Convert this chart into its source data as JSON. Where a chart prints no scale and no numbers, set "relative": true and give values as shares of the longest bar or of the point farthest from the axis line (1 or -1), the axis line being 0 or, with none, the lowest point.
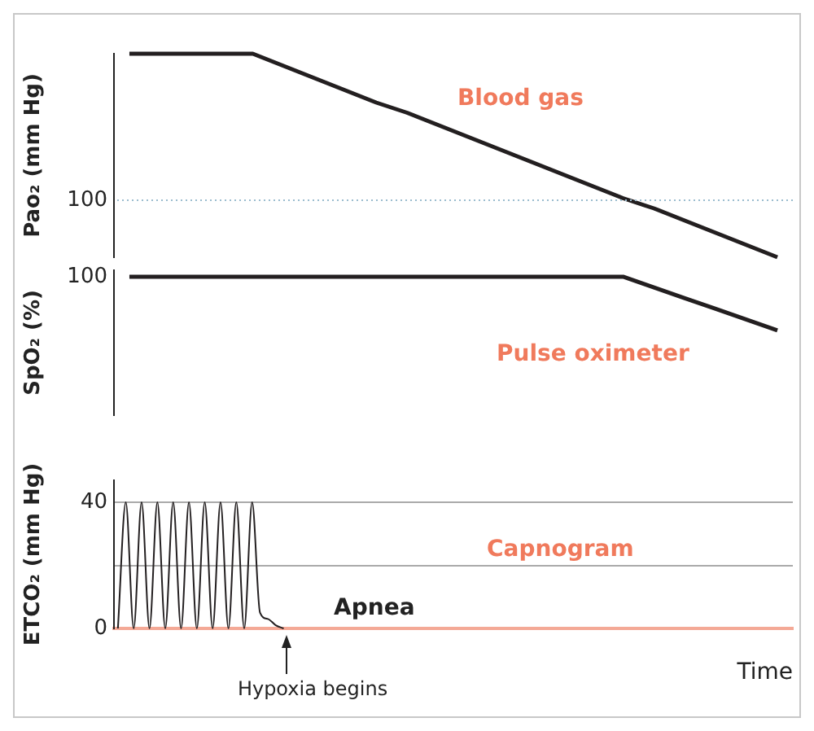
{
  "chart_data": [
    {
      "type": "line",
      "relative": true,
      "ylabel": "Pao₂ (mm Hg)",
      "tick_labels": false,
      "categories": [
        null,
        null,
        null,
        null,
        null,
        null,
        null,
        null,
        null,
        null,
        null,
        null,
        null,
        null,
        null,
        null,
        null,
        null,
        null,
        null,
        null,
        null
      ],
      "series": [
        {
          "color": "#231f20",
          "values": [
            1,
            1,
            1,
            1,
            1,
            0.94,
            0.88,
            0.82,
            0.76,
            0.71,
            0.65,
            0.59,
            0.53,
            0.47,
            0.41,
            0.35,
            0.29,
            0.24,
            0.18,
            0.12,
            0.06,
            0
          ]
        }
      ],
      "ref_lines": [
        {
          "axis": "y",
          "value": 0.28,
          "color": "#9bbccf",
          "line_style": "dotted"
        }
      ],
      "annotations": [
        "Blood gas",
        "100"
      ]
    },
    {
      "type": "line",
      "relative": true,
      "ylabel": "SpO₂ (%)",
      "tick_labels": false,
      "categories": [
        null,
        null,
        null,
        null,
        null,
        null,
        null,
        null,
        null,
        null,
        null,
        null,
        null,
        null,
        null,
        null,
        null,
        null,
        null,
        null,
        null,
        null
      ],
      "series": [
        {
          "color": "#231f20",
          "values": [
            1,
            1,
            1,
            1,
            1,
            1,
            1,
            1,
            1,
            1,
            1,
            1,
            1,
            1,
            1,
            1,
            1,
            0.8,
            0.6,
            0.4,
            0.2,
            0
          ]
        }
      ],
      "annotations": [
        "Pulse oximeter",
        "100"
      ]
    },
    {
      "type": "line",
      "ylabel": "ETCO₂ (mm Hg)",
      "xlabel": "Time",
      "tick_labels": "y",
      "grid": "y",
      "ylim": [
        0,
        47
      ],
      "yticks": [
        0,
        {
          "value": 20,
          "label": null
        },
        40
      ],
      "categories": [
        null,
        null,
        null,
        null,
        null,
        null,
        null,
        null,
        null,
        null,
        null,
        null,
        null,
        null,
        null,
        null,
        null,
        null,
        null,
        null,
        null,
        null,
        null,
        null,
        null,
        null,
        null,
        null,
        null,
        null,
        null,
        null,
        null,
        null,
        null,
        null,
        null,
        null,
        null,
        null,
        null,
        null,
        null,
        null,
        null,
        null,
        null,
        null,
        null,
        null,
        null,
        null,
        null,
        null,
        null,
        null,
        null,
        null,
        null,
        null,
        null,
        null,
        null,
        null,
        null,
        null,
        null,
        null,
        null,
        null,
        null,
        null,
        null,
        null,
        null,
        null,
        null,
        null,
        null,
        null,
        null,
        null,
        null,
        null,
        null,
        null
      ],
      "series": [
        {
          "color": "#231f20",
          "values": [
            0,
            40,
            0,
            40,
            0,
            40,
            0,
            40,
            0,
            40,
            0,
            40,
            0,
            40,
            0,
            40,
            0,
            40,
            5,
            3,
            1,
            0,
            null,
            null,
            null,
            null,
            null,
            null,
            null,
            null,
            null,
            null,
            null,
            null,
            null,
            null,
            null,
            null,
            null,
            null,
            null,
            null,
            null,
            null,
            null,
            null,
            null,
            null,
            null,
            null,
            null,
            null,
            null,
            null,
            null,
            null,
            null,
            null,
            null,
            null,
            null,
            null,
            null,
            null,
            null,
            null,
            null,
            null,
            null,
            null,
            null,
            null,
            null,
            null,
            null,
            null,
            null,
            null,
            null,
            null,
            null,
            null,
            null,
            null,
            null,
            null
          ]
        }
      ],
      "annotations": [
        "Capnogram",
        "Apnea",
        "Hypoxia begins"
      ]
    }
  ]
}
